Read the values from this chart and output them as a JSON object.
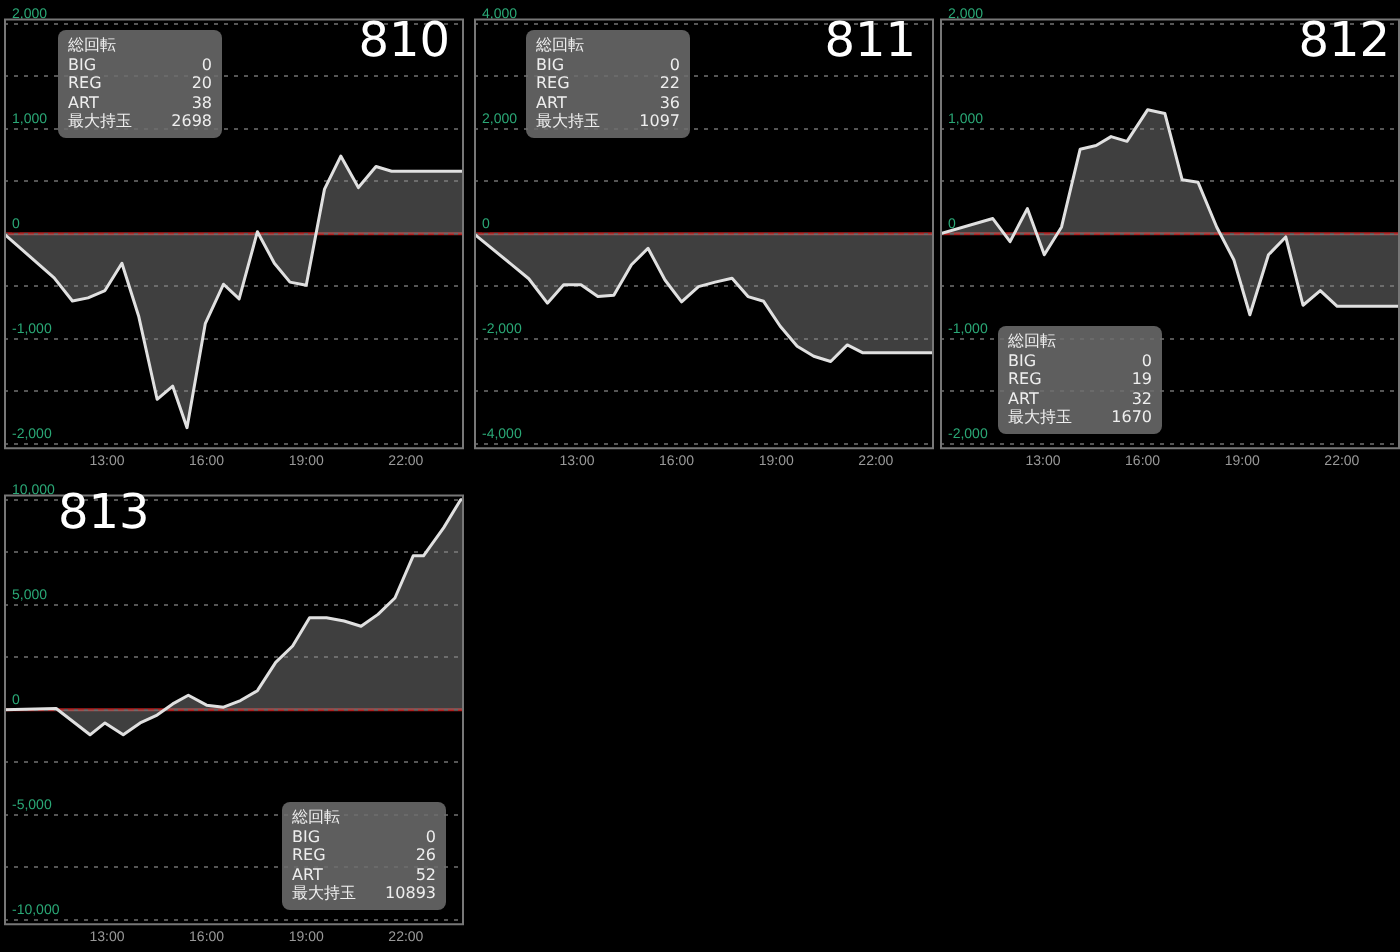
{
  "chart_data": [
    {
      "type": "area",
      "title": "810",
      "annotations": [
        "総回転",
        "BIG 0",
        "REG 20",
        "ART 38",
        "最大持玉 2698"
      ],
      "x": [
        9.9,
        11.41,
        11.96,
        12.43,
        12.94,
        13.45,
        13.96,
        14.51,
        14.98,
        15.41,
        15.96,
        16.51,
        16.98,
        17.53,
        18.04,
        18.51,
        19.0,
        19.55,
        20.04,
        20.57,
        21.1,
        21.57,
        23.75
      ],
      "series": [
        {
          "color": "#e0e0e0",
          "values": [
            0,
            -420,
            -640,
            -610,
            -540,
            -280,
            -790,
            -1575,
            -1450,
            -1845,
            -855,
            -480,
            -620,
            20,
            -280,
            -460,
            -490,
            425,
            740,
            440,
            640,
            595,
            595
          ]
        }
      ],
      "xlim": [
        9.9,
        23.75
      ],
      "xticks": [
        {
          "value": 13,
          "label": "13:00"
        },
        {
          "value": 16,
          "label": "16:00"
        },
        {
          "value": 19,
          "label": "19:00"
        },
        {
          "value": 22,
          "label": "22:00"
        }
      ],
      "ylim": [
        -2050,
        2050
      ],
      "yticks": [
        {
          "value": -2000,
          "label": "-2,000"
        },
        {
          "value": -1500,
          "label": null
        },
        {
          "value": -1000,
          "label": "-1,000"
        },
        {
          "value": -500,
          "label": null
        },
        {
          "value": 0,
          "label": "0"
        },
        {
          "value": 500,
          "label": null
        },
        {
          "value": 1000,
          "label": "1,000"
        },
        {
          "value": 1500,
          "label": null
        },
        {
          "value": 2000,
          "label": "2,000"
        }
      ],
      "ref_lines": [
        {
          "axis": "y",
          "value": 0,
          "color": "#b02020"
        }
      ],
      "grid": "y"
    },
    {
      "type": "area",
      "title": "811",
      "annotations": [
        "総回転",
        "BIG 0",
        "REG 22",
        "ART 36",
        "最大持玉 1097"
      ],
      "x": [
        9.9,
        11.55,
        12.11,
        12.6,
        13.12,
        13.63,
        14.11,
        14.64,
        15.14,
        15.65,
        16.15,
        16.66,
        17.16,
        17.67,
        18.15,
        18.62,
        19.12,
        19.63,
        20.13,
        20.64,
        21.14,
        21.61,
        23.75
      ],
      "series": [
        {
          "color": "#e0e0e0",
          "values": [
            0,
            -855,
            -1320,
            -970,
            -970,
            -1195,
            -1170,
            -590,
            -275,
            -880,
            -1295,
            -1005,
            -920,
            -845,
            -1195,
            -1285,
            -1760,
            -2140,
            -2330,
            -2430,
            -2115,
            -2265,
            -2265
          ]
        }
      ],
      "xlim": [
        9.9,
        23.75
      ],
      "xticks": [
        {
          "value": 13,
          "label": "13:00"
        },
        {
          "value": 16,
          "label": "16:00"
        },
        {
          "value": 19,
          "label": "19:00"
        },
        {
          "value": 22,
          "label": "22:00"
        }
      ],
      "ylim": [
        -4100,
        4100
      ],
      "yticks": [
        {
          "value": -4000,
          "label": "-4,000"
        },
        {
          "value": -3000,
          "label": null
        },
        {
          "value": -2000,
          "label": "-2,000"
        },
        {
          "value": -1000,
          "label": null
        },
        {
          "value": 0,
          "label": "0"
        },
        {
          "value": 1000,
          "label": null
        },
        {
          "value": 2000,
          "label": "2,000"
        },
        {
          "value": 3000,
          "label": null
        },
        {
          "value": 4000,
          "label": "4,000"
        }
      ],
      "ref_lines": [
        {
          "axis": "y",
          "value": 0,
          "color": "#b02020"
        }
      ],
      "grid": "y"
    },
    {
      "type": "area",
      "title": "812",
      "annotations": [
        "総回転",
        "BIG 0",
        "REG 19",
        "ART 32",
        "最大持玉 1670"
      ],
      "x": [
        9.9,
        11.49,
        12.01,
        12.53,
        13.04,
        13.56,
        14.12,
        14.6,
        15.05,
        15.53,
        16.15,
        16.67,
        17.19,
        17.67,
        18.23,
        18.75,
        19.23,
        19.79,
        20.31,
        20.83,
        21.35,
        21.86,
        23.75
      ],
      "series": [
        {
          "color": "#e0e0e0",
          "values": [
            0,
            145,
            -75,
            240,
            -200,
            65,
            805,
            840,
            925,
            880,
            1180,
            1145,
            515,
            490,
            65,
            -250,
            -770,
            -200,
            -30,
            -680,
            -540,
            -690,
            -690
          ]
        }
      ],
      "xlim": [
        9.9,
        23.75
      ],
      "xticks": [
        {
          "value": 13,
          "label": "13:00"
        },
        {
          "value": 16,
          "label": "16:00"
        },
        {
          "value": 19,
          "label": "19:00"
        },
        {
          "value": 22,
          "label": "22:00"
        }
      ],
      "ylim": [
        -2050,
        2050
      ],
      "yticks": [
        {
          "value": -2000,
          "label": "-2,000"
        },
        {
          "value": -1500,
          "label": null
        },
        {
          "value": -1000,
          "label": "-1,000"
        },
        {
          "value": -500,
          "label": null
        },
        {
          "value": 0,
          "label": "0"
        },
        {
          "value": 500,
          "label": null
        },
        {
          "value": 1000,
          "label": "1,000"
        },
        {
          "value": 1500,
          "label": null
        },
        {
          "value": 2000,
          "label": "2,000"
        }
      ],
      "ref_lines": [
        {
          "axis": "y",
          "value": 0,
          "color": "#b02020"
        }
      ],
      "grid": "y"
    },
    {
      "type": "area",
      "title": "813",
      "annotations": [
        "総回転",
        "BIG 0",
        "REG 26",
        "ART 52",
        "最大持玉 10893"
      ],
      "x": [
        9.9,
        11.47,
        12.49,
        12.94,
        13.49,
        14.0,
        14.51,
        14.98,
        15.45,
        16.0,
        16.51,
        17.02,
        17.53,
        18.08,
        18.59,
        19.1,
        19.61,
        20.14,
        20.65,
        21.16,
        21.67,
        22.22,
        22.53,
        23.14,
        23.65,
        23.75
      ],
      "series": [
        {
          "color": "#e0e0e0",
          "values": [
            0,
            60,
            -1190,
            -625,
            -1190,
            -625,
            -250,
            280,
            690,
            220,
            125,
            440,
            910,
            2255,
            3035,
            4380,
            4380,
            4225,
            3975,
            4540,
            5320,
            7325,
            7325,
            8670,
            10000,
            10000
          ]
        }
      ],
      "xlim": [
        9.9,
        23.75
      ],
      "xticks": [
        {
          "value": 13,
          "label": "13:00"
        },
        {
          "value": 16,
          "label": "16:00"
        },
        {
          "value": 19,
          "label": "19:00"
        },
        {
          "value": 22,
          "label": "22:00"
        }
      ],
      "ylim": [
        -10250,
        10250
      ],
      "yticks": [
        {
          "value": -10000,
          "label": "-10,000"
        },
        {
          "value": -7500,
          "label": null
        },
        {
          "value": -5000,
          "label": "-5,000"
        },
        {
          "value": -2500,
          "label": null
        },
        {
          "value": 0,
          "label": "0"
        },
        {
          "value": 2500,
          "label": null
        },
        {
          "value": 5000,
          "label": "5,000"
        },
        {
          "value": 7500,
          "label": null
        },
        {
          "value": 10000,
          "label": "10,000"
        }
      ],
      "ref_lines": [
        {
          "axis": "y",
          "value": 0,
          "color": "#b02020"
        }
      ],
      "grid": "y"
    }
  ]
}
